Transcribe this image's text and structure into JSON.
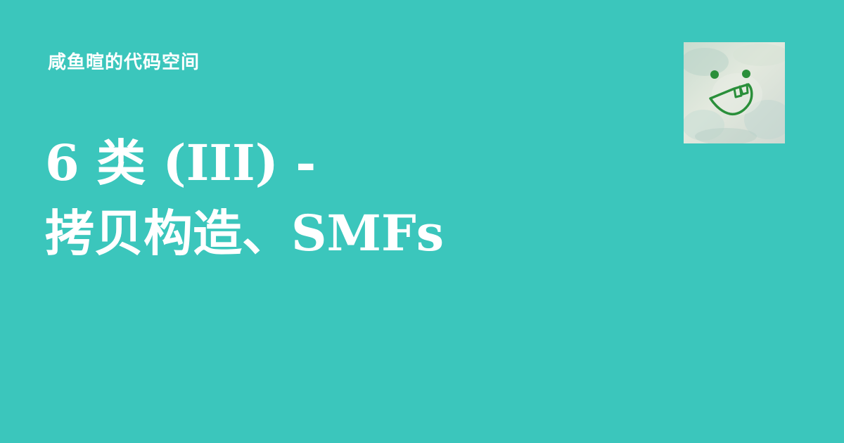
{
  "site": {
    "name": "咸鱼暄的代码空间"
  },
  "post": {
    "title_lines": [
      "6 类 (III) -",
      "拷贝构造、SMFs"
    ]
  },
  "avatar": {
    "icon": "smiley-face-icon",
    "face_color": "#2a8f3a"
  },
  "colors": {
    "background": "#3bc6bc",
    "text": "#ffffff"
  }
}
